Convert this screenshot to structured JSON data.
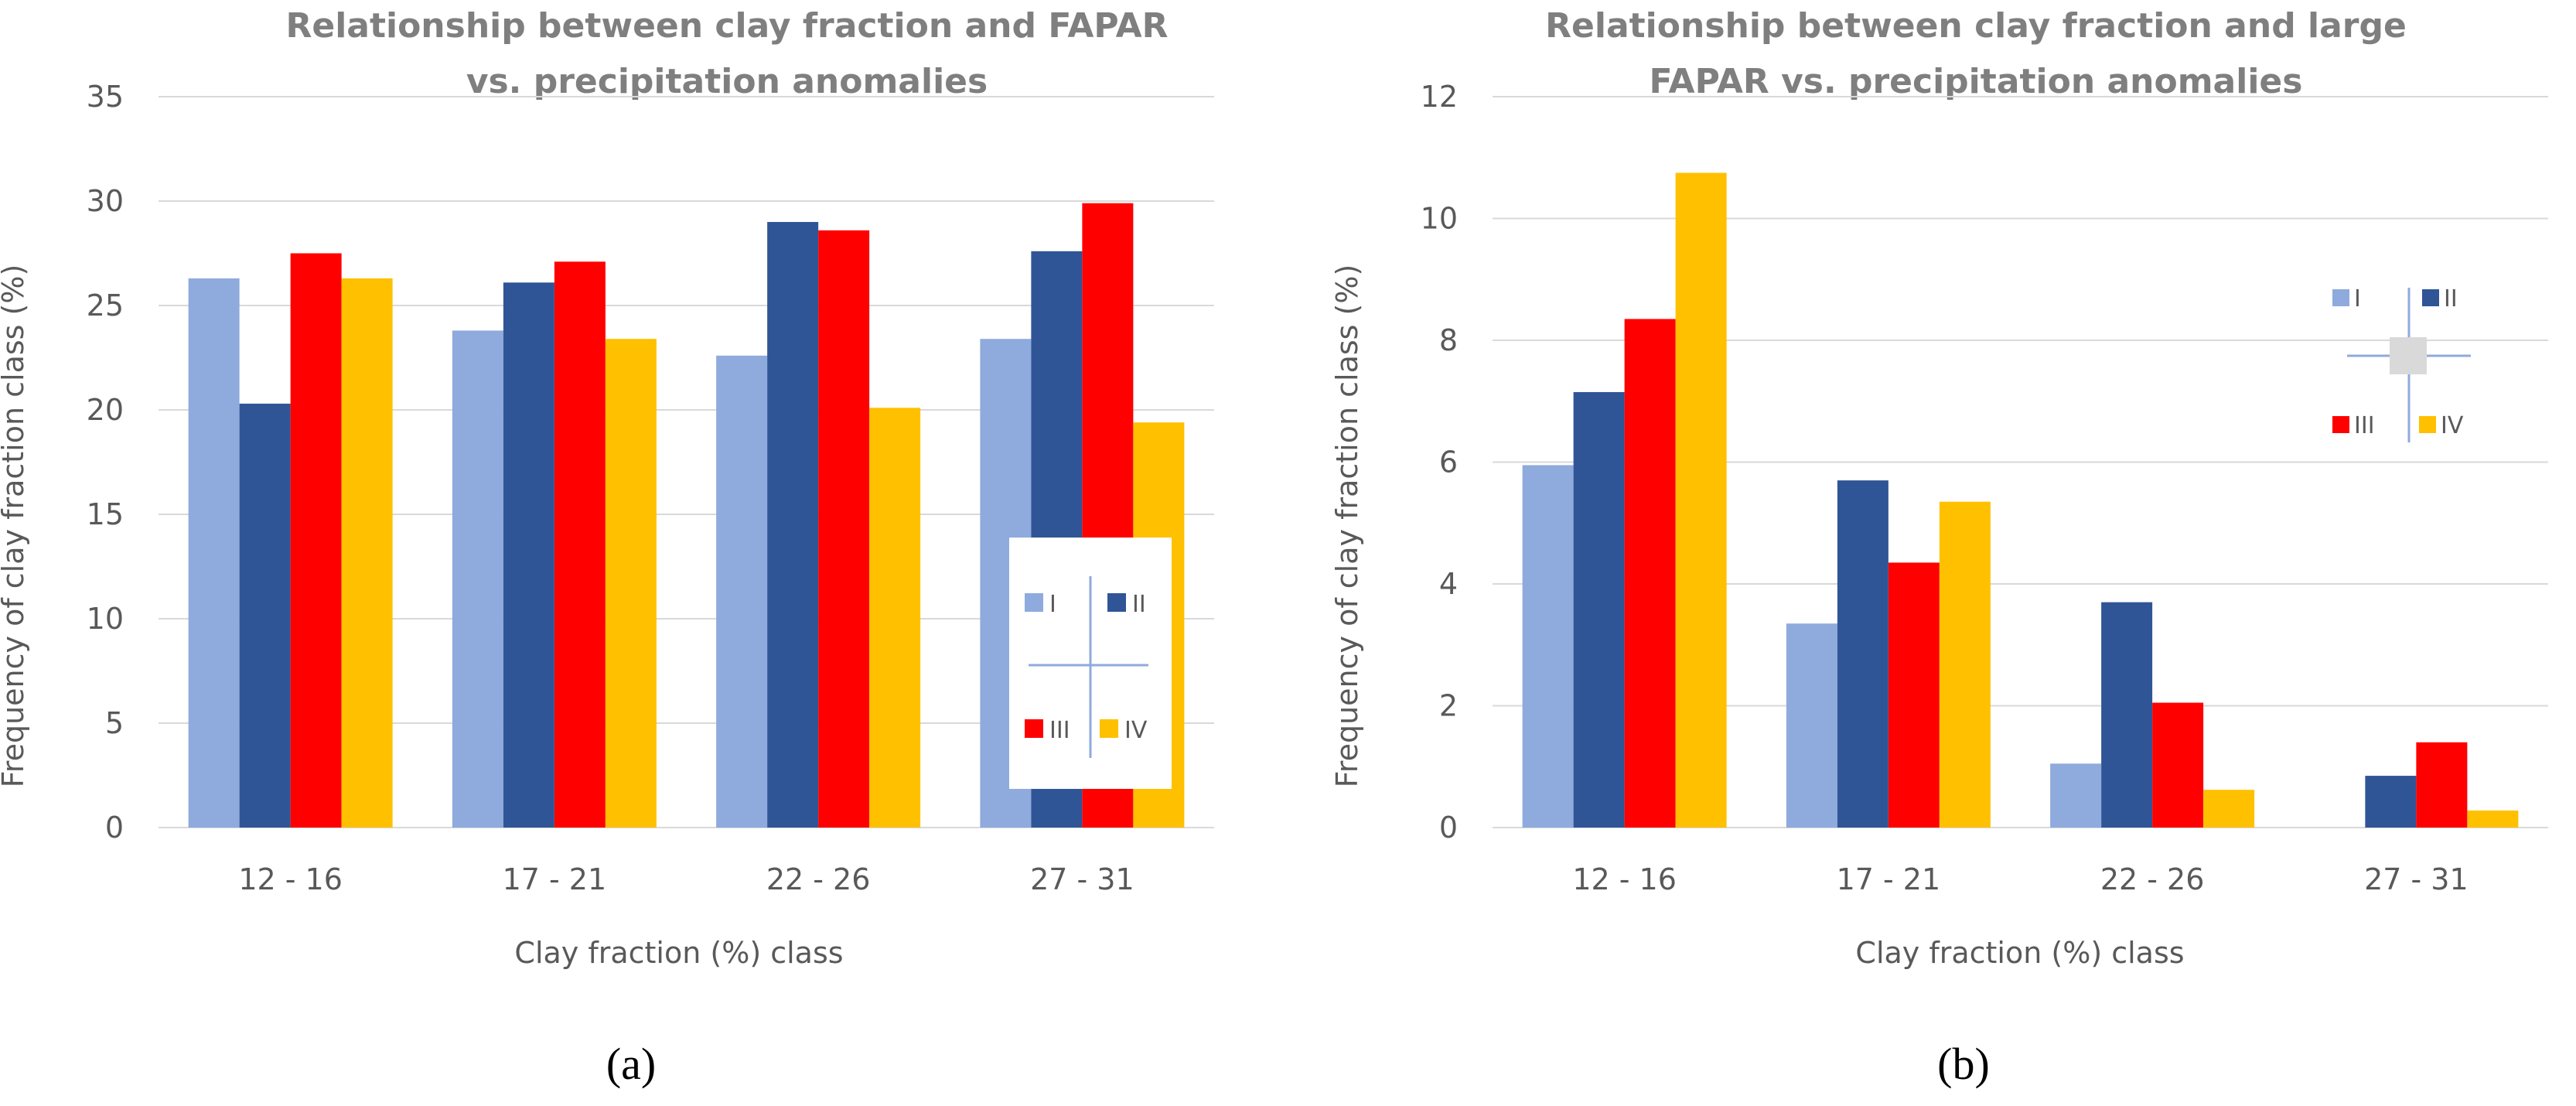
{
  "chart_data": [
    {
      "type": "bar",
      "title_lines": [
        "Relationship between clay fraction and FAPAR",
        "vs. precipitation anomalies"
      ],
      "xlabel": "Clay fraction (%) class",
      "ylabel": "Frequency of clay fraction class (%)",
      "ylim": [
        0,
        35
      ],
      "ytick_step": 5,
      "yticks": [
        "0",
        "5",
        "10",
        "15",
        "20",
        "25",
        "30",
        "35"
      ],
      "categories": [
        "12 - 16",
        "17 - 21",
        "22 - 26",
        "27 - 31"
      ],
      "series": [
        {
          "name": "I",
          "color": "#8faadc",
          "values": [
            26.3,
            23.8,
            22.6,
            23.4
          ]
        },
        {
          "name": "II",
          "color": "#2f5597",
          "values": [
            20.3,
            26.1,
            29.0,
            27.6
          ]
        },
        {
          "name": "III",
          "color": "#ff0000",
          "values": [
            27.5,
            27.1,
            28.6,
            29.9
          ]
        },
        {
          "name": "IV",
          "color": "#ffc000",
          "values": [
            26.3,
            23.4,
            20.1,
            19.4
          ]
        }
      ],
      "legend": {
        "placement": "lower-right",
        "labels": [
          "I",
          "II",
          "III",
          "IV"
        ]
      },
      "panel_label": "(a)"
    },
    {
      "type": "bar",
      "title_lines": [
        "Relationship between clay fraction and large",
        "FAPAR vs. precipitation anomalies"
      ],
      "xlabel": "Clay fraction (%) class",
      "ylabel": "Frequency of clay fraction class (%)",
      "ylim": [
        0,
        12
      ],
      "ytick_step": 2,
      "yticks": [
        "0",
        "2",
        "4",
        "6",
        "8",
        "10",
        "12"
      ],
      "categories": [
        "12 - 16",
        "17 - 21",
        "22 - 26",
        "27 - 31"
      ],
      "series": [
        {
          "name": "I",
          "color": "#8faadc",
          "values": [
            5.95,
            3.35,
            1.05,
            0.0
          ]
        },
        {
          "name": "II",
          "color": "#2f5597",
          "values": [
            7.15,
            5.7,
            3.7,
            0.85
          ]
        },
        {
          "name": "III",
          "color": "#ff0000",
          "values": [
            8.35,
            4.35,
            2.05,
            1.4
          ]
        },
        {
          "name": "IV",
          "color": "#ffc000",
          "values": [
            10.75,
            5.35,
            0.62,
            0.28
          ]
        }
      ],
      "legend": {
        "placement": "top-right",
        "labels": [
          "I",
          "II",
          "III",
          "IV"
        ]
      },
      "panel_label": "(b)"
    }
  ]
}
